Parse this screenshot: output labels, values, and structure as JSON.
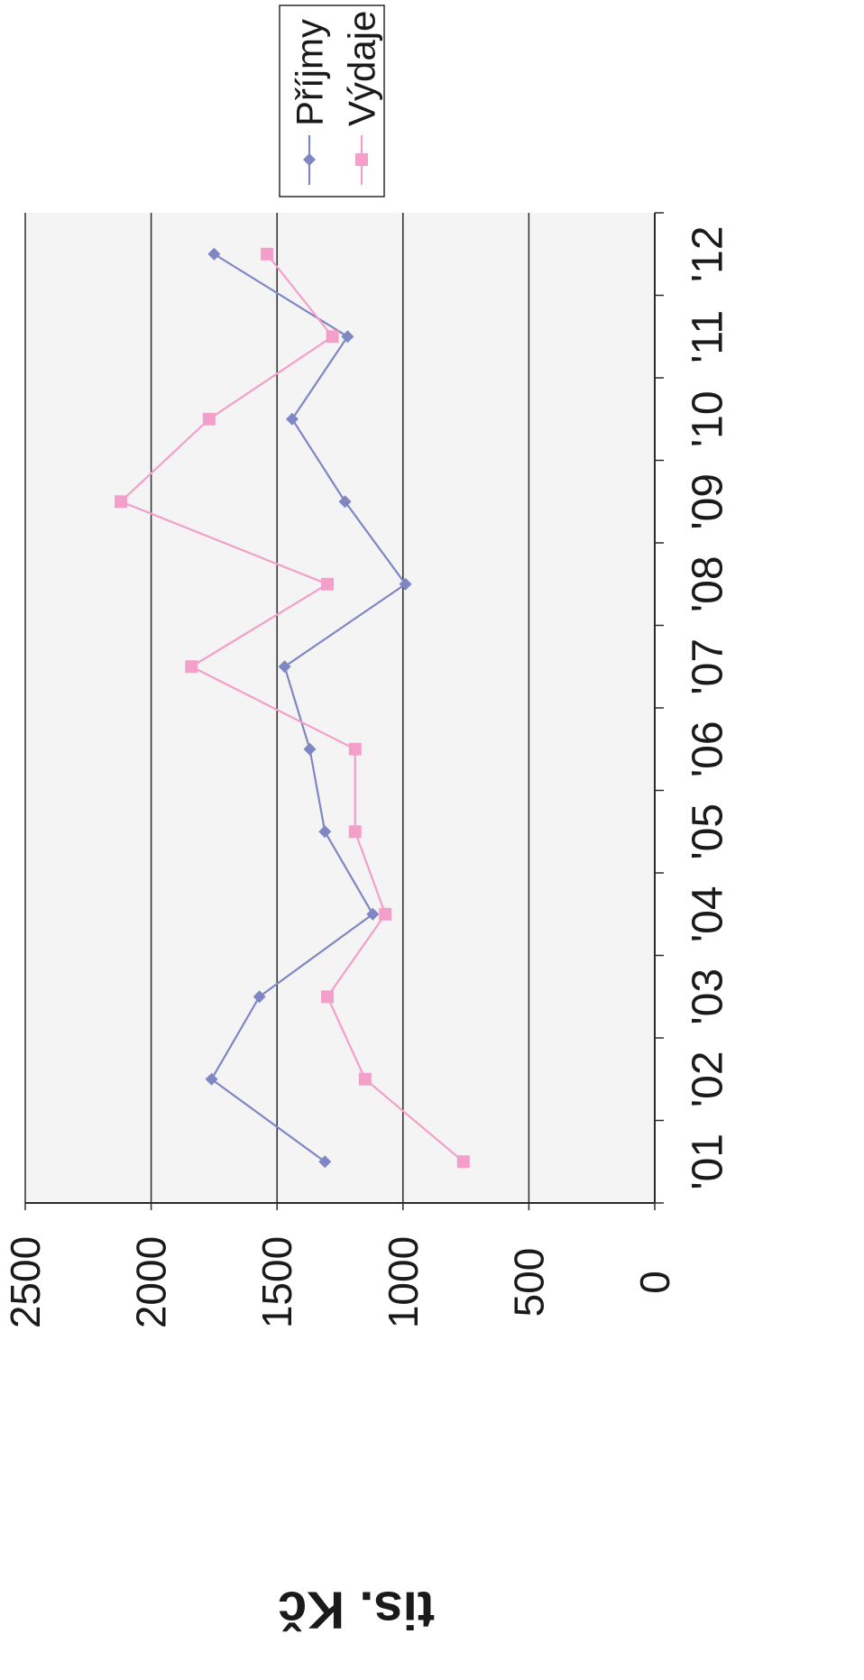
{
  "chart_data": {
    "type": "line",
    "orientation": "rotated-90-clockwise",
    "title": "",
    "xlabel": "",
    "ylabel": "tis. Kč",
    "categories": [
      "'01",
      "'02",
      "'03",
      "'04",
      "'05",
      "'06",
      "'07",
      "'08",
      "'09",
      "'10",
      "'11",
      "'12"
    ],
    "ylim": [
      0,
      2500
    ],
    "yticks": [
      "0",
      "500",
      "1000",
      "1500",
      "2000",
      "2500"
    ],
    "grid": true,
    "legend": "top-right",
    "series": [
      {
        "name": "Příjmy",
        "color": "#7f86c4",
        "marker": "diamond",
        "values": [
          1310,
          1760,
          1570,
          1120,
          1310,
          1370,
          1470,
          990,
          1230,
          1440,
          1220,
          1750
        ]
      },
      {
        "name": "Výdaje",
        "color": "#f39fc9",
        "marker": "square",
        "values": [
          760,
          1150,
          1300,
          1070,
          1190,
          1190,
          1840,
          1300,
          2120,
          1770,
          1280,
          1540
        ]
      }
    ]
  }
}
